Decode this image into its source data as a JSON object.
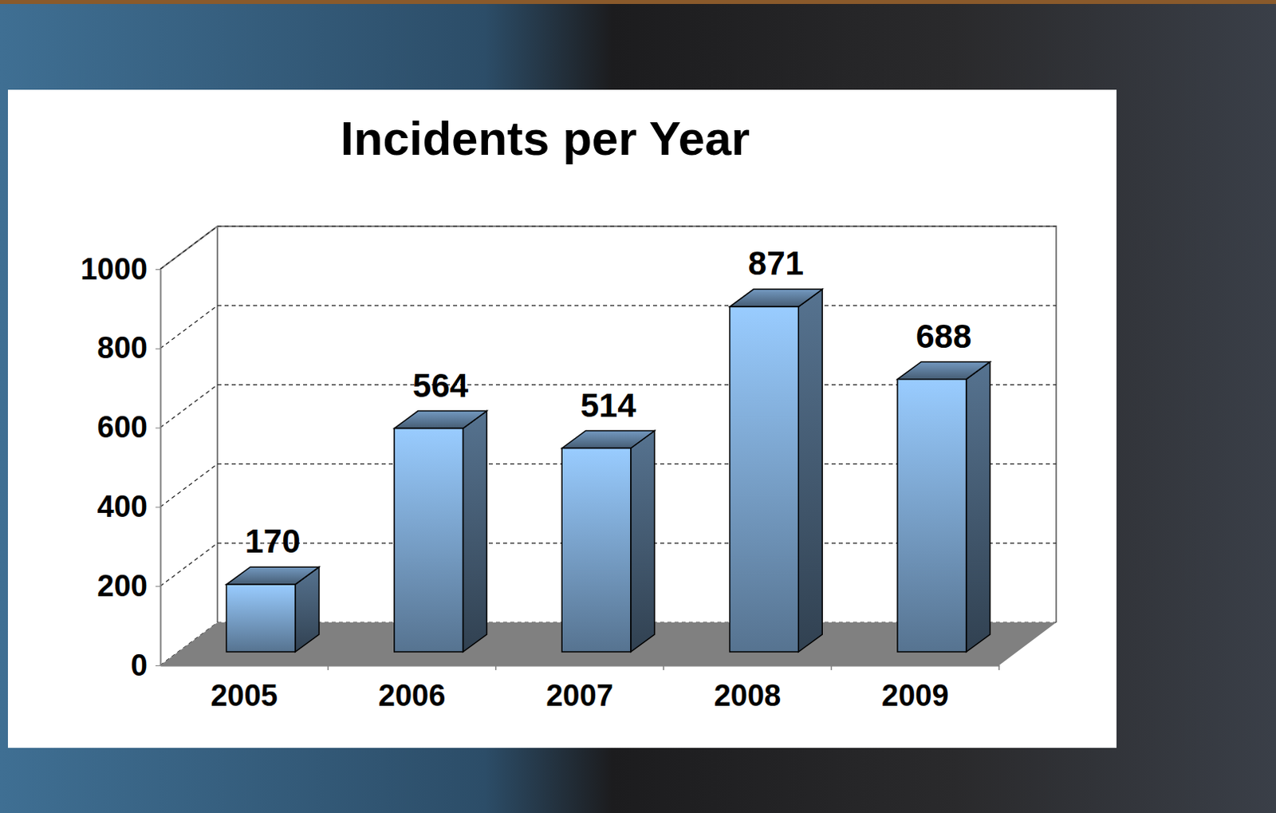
{
  "chart_data": {
    "type": "bar",
    "title": "Incidents per Year",
    "categories": [
      "2005",
      "2006",
      "2007",
      "2008",
      "2009"
    ],
    "values": [
      170,
      564,
      514,
      871,
      688
    ],
    "color": "#99ccff",
    "ylim": [
      0,
      1000
    ],
    "yticks": [
      0,
      200,
      400,
      600,
      800,
      1000
    ],
    "grid": true,
    "data_labels": true
  }
}
